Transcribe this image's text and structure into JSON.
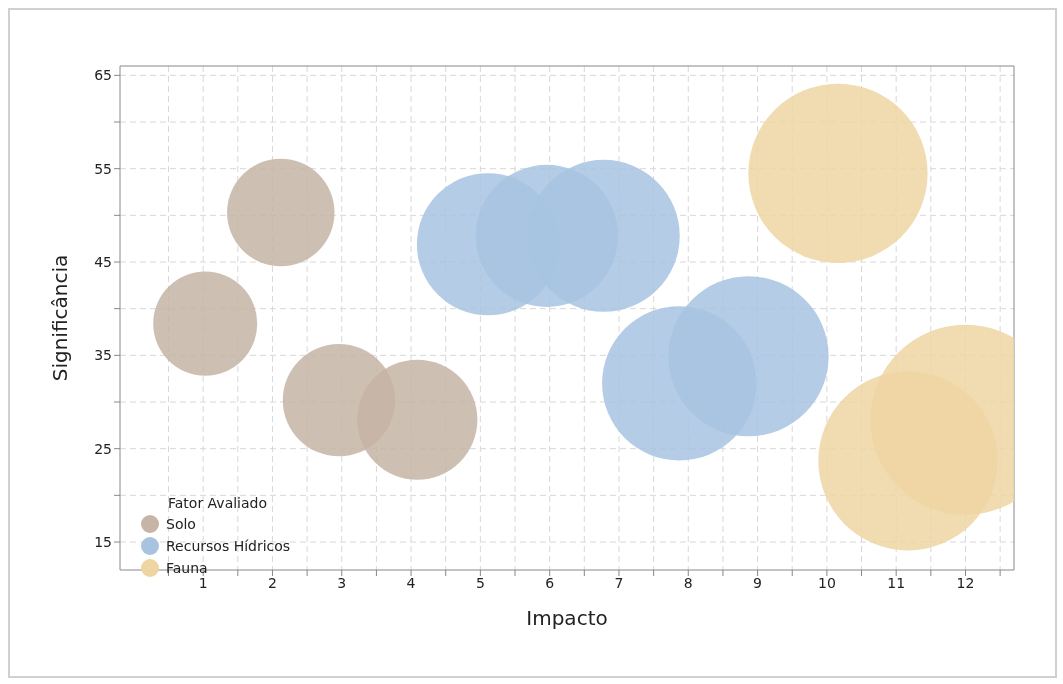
{
  "chart_data": {
    "type": "bubble",
    "xlabel": "Impacto",
    "ylabel": "Significância",
    "legend_title": "Fator Avaliado",
    "legend": "bottom left",
    "grid": true,
    "xlim": [
      -0.2,
      12.7
    ],
    "xticks": [
      {
        "value": 0.5,
        "label": null
      },
      1,
      {
        "value": 1.5,
        "label": null
      },
      2,
      {
        "value": 2.5,
        "label": null
      },
      3,
      {
        "value": 3.5,
        "label": null
      },
      4,
      {
        "value": 4.5,
        "label": null
      },
      5,
      {
        "value": 5.5,
        "label": null
      },
      6,
      {
        "value": 6.5,
        "label": null
      },
      7,
      {
        "value": 7.5,
        "label": null
      },
      8,
      {
        "value": 8.5,
        "label": null
      },
      9,
      {
        "value": 9.5,
        "label": null
      },
      10,
      {
        "value": 10.5,
        "label": null
      },
      11,
      {
        "value": 11.5,
        "label": null
      },
      12,
      {
        "value": 12.5,
        "label": null
      }
    ],
    "ylim": [
      12,
      66
    ],
    "yticks": [
      15,
      {
        "value": 20,
        "label": null
      },
      25,
      {
        "value": 30,
        "label": null
      },
      35,
      {
        "value": 40,
        "label": null
      },
      45,
      {
        "value": 50,
        "label": null
      },
      55,
      {
        "value": 60,
        "label": null
      },
      65
    ],
    "series": [
      {
        "name": "Solo",
        "color": "#c6b4a6",
        "x": [
          1.03,
          2.12,
          2.96,
          4.09
        ],
        "values": [
          38.4,
          50.3,
          30.2,
          28.1
        ],
        "sizes": [
          0.3,
          0.32,
          0.35,
          0.4
        ]
      },
      {
        "name": "Recursos Hídricos",
        "color": "#a7c3e0",
        "x": [
          5.11,
          5.96,
          6.78,
          7.87,
          8.87
        ],
        "values": [
          46.9,
          47.8,
          47.8,
          32.0,
          34.9
        ],
        "sizes": [
          0.56,
          0.56,
          0.64,
          0.66,
          0.71
        ]
      },
      {
        "name": "Fauna",
        "color": "#eed5a2",
        "x": [
          10.16,
          11.17,
          12.0
        ],
        "values": [
          54.5,
          23.7,
          28.1
        ],
        "sizes": [
          0.89,
          0.89,
          1
        ]
      }
    ]
  }
}
